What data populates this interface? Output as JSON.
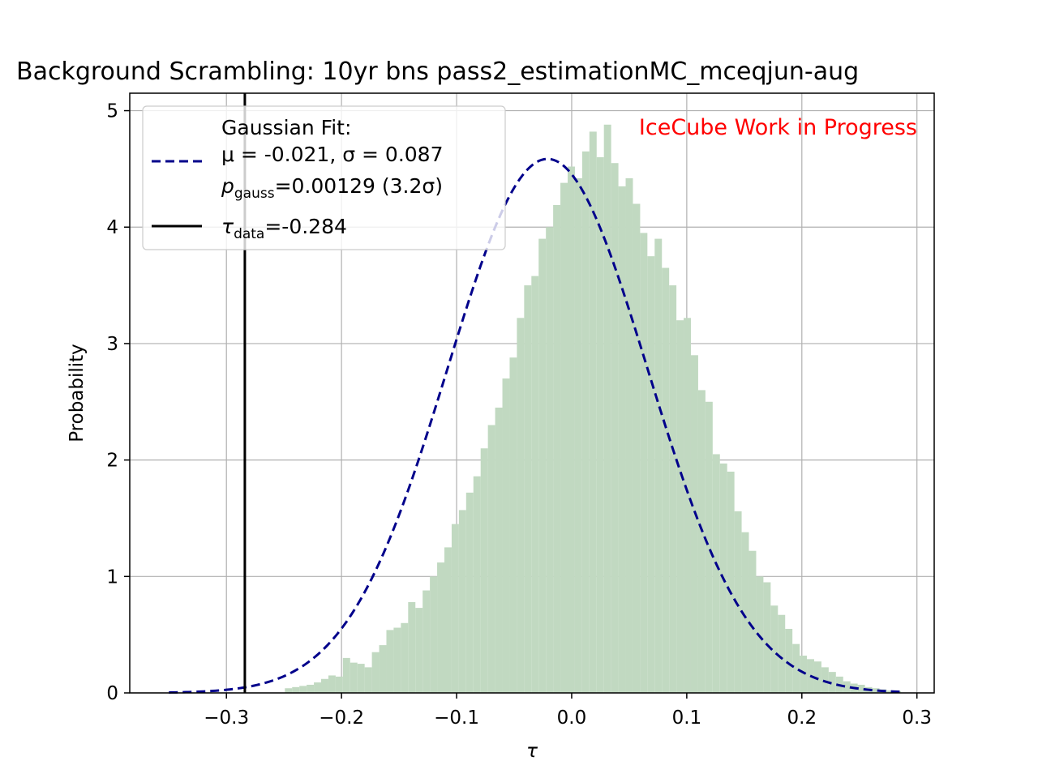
{
  "chart_data": {
    "type": "bar",
    "title": "Background Scrambling: 10yr bns pass2_estimationMC_mceqjun-aug",
    "xlabel": "τ",
    "ylabel": "Probability",
    "xlim": [
      -0.384,
      0.315
    ],
    "ylim": [
      0,
      5.15
    ],
    "x_ticks": [
      -0.3,
      -0.2,
      -0.1,
      0.0,
      0.1,
      0.2,
      0.3
    ],
    "x_tick_labels": [
      "−0.3",
      "−0.2",
      "−0.1",
      "0.0",
      "0.1",
      "0.2",
      "0.3"
    ],
    "y_ticks": [
      0,
      1,
      2,
      3,
      4,
      5
    ],
    "y_tick_labels": [
      "0",
      "1",
      "2",
      "3",
      "4",
      "5"
    ],
    "grid": true,
    "histogram": {
      "color": "#c1d9c1",
      "bin_start": -0.35,
      "bin_width": 0.0063,
      "values": [
        0,
        0,
        0,
        0,
        0,
        0,
        0,
        0,
        0,
        0,
        0,
        0,
        0,
        0,
        0,
        0,
        0.04,
        0.05,
        0.06,
        0.07,
        0.09,
        0.12,
        0.15,
        0.14,
        0.3,
        0.26,
        0.25,
        0.22,
        0.35,
        0.41,
        0.54,
        0.56,
        0.6,
        0.78,
        0.73,
        0.88,
        1.0,
        1.12,
        1.25,
        1.45,
        1.57,
        1.72,
        1.86,
        2.1,
        2.3,
        2.45,
        2.7,
        2.88,
        3.22,
        3.5,
        3.58,
        3.9,
        4.0,
        4.19,
        4.38,
        4.52,
        4.42,
        4.65,
        4.82,
        4.6,
        4.88,
        4.55,
        4.35,
        4.42,
        4.2,
        3.95,
        3.75,
        3.9,
        3.65,
        3.5,
        3.2,
        3.22,
        2.9,
        2.6,
        2.5,
        2.05,
        1.97,
        1.9,
        1.56,
        1.38,
        1.22,
        1.0,
        0.95,
        0.75,
        0.67,
        0.55,
        0.42,
        0.32,
        0.29,
        0.27,
        0.22,
        0.18,
        0.14,
        0.1,
        0.08,
        0.07,
        0.05,
        0.04,
        0.03,
        0.02,
        0.015
      ]
    },
    "series": [
      {
        "name": "Gaussian Fit:",
        "kind": "gaussian",
        "mu": -0.021,
        "sigma": 0.087,
        "x_range": [
          -0.35,
          0.285
        ],
        "color": "#00008b",
        "style": "dashed"
      },
      {
        "name": "τdata=-0.284",
        "kind": "vline",
        "x": -0.284,
        "color": "#000000",
        "style": "solid"
      }
    ],
    "legend": {
      "placement": "upper-left",
      "header": "Gaussian Fit:",
      "fit_line1": "μ = -0.021, σ = 0.087",
      "fit_line2_sym": "p",
      "fit_line2_sub": "gauss",
      "fit_line2_rest": "=0.00129 (3.2σ)",
      "data_sym": "τ",
      "data_sub": "data",
      "data_rest": "=-0.284"
    },
    "annotations": [
      {
        "text": "IceCube Work in Progress",
        "color": "#ff0000",
        "placement": "top-right"
      }
    ]
  }
}
